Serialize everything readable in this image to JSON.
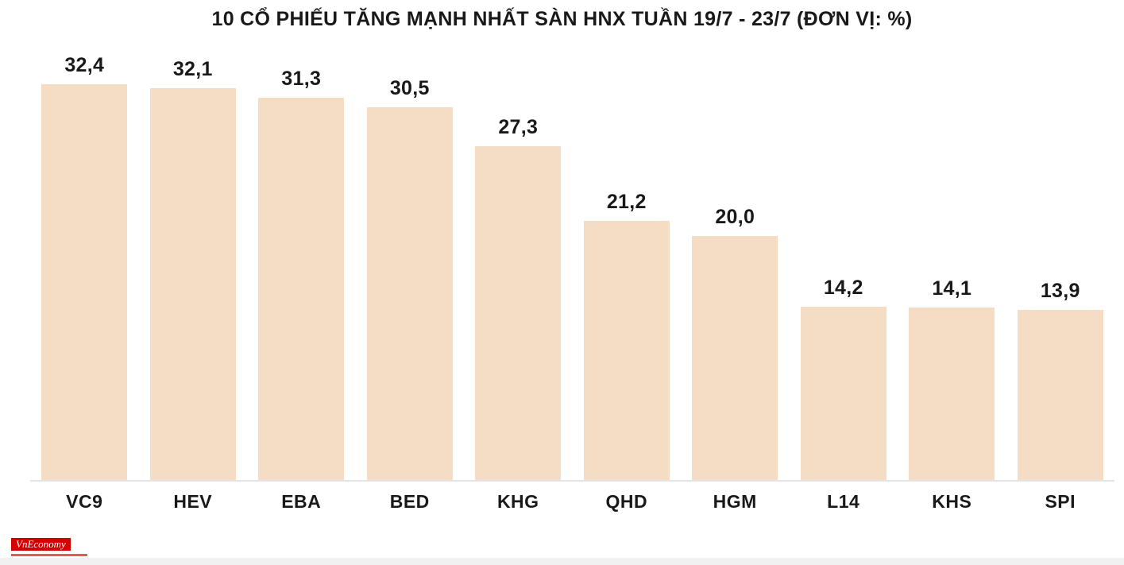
{
  "chart_data": {
    "type": "bar",
    "title": "10 CỔ PHIẾU TĂNG MẠNH NHẤT SÀN HNX TUẦN 19/7 - 23/7 (ĐƠN VỊ: %)",
    "categories": [
      "VC9",
      "HEV",
      "EBA",
      "BED",
      "KHG",
      "QHD",
      "HGM",
      "L14",
      "KHS",
      "SPI"
    ],
    "values": [
      32.4,
      32.1,
      31.3,
      30.5,
      27.3,
      21.2,
      20.0,
      14.2,
      14.1,
      13.9
    ],
    "value_labels": [
      "32,4",
      "32,1",
      "31,3",
      "30,5",
      "27,3",
      "21,2",
      "20,0",
      "14,2",
      "14,1",
      "13,9"
    ],
    "xlabel": "",
    "ylabel": "",
    "ylim": [
      0,
      32.4
    ],
    "grid": false,
    "legend": false,
    "bar_color": "#f5dcc5",
    "label_color": "#191919",
    "axis_line_color": "#e4e4e4"
  },
  "branding": {
    "logo_text": "VnEconomy",
    "logo_color": "#d40000"
  }
}
